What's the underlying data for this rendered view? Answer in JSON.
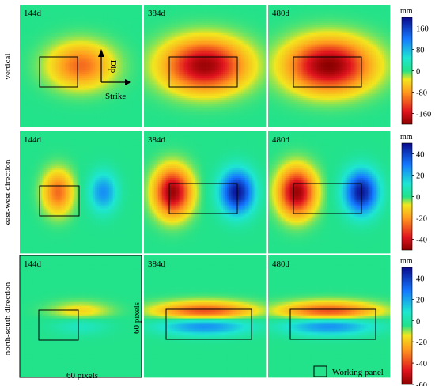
{
  "rows": [
    {
      "label": "vertical",
      "unit": "mm",
      "panels": [
        {
          "time": "144d",
          "pattern": "bowl",
          "amplitude": 0.55
        },
        {
          "time": "384d",
          "pattern": "bowl",
          "amplitude": 1.0
        },
        {
          "time": "480d",
          "pattern": "bowl",
          "amplitude": 1.05
        }
      ],
      "colorbar": {
        "ticks": [
          "160",
          "80",
          "0",
          "-80",
          "-160"
        ],
        "range": [
          -200,
          200
        ]
      }
    },
    {
      "label": "east-west direction",
      "unit": "mm",
      "panels": [
        {
          "time": "144d",
          "pattern": "ew",
          "amplitude": 0.55
        },
        {
          "time": "384d",
          "pattern": "ew",
          "amplitude": 1.0
        },
        {
          "time": "480d",
          "pattern": "ew",
          "amplitude": 1.0
        }
      ],
      "colorbar": {
        "ticks": [
          "40",
          "20",
          "0",
          "-20",
          "-40"
        ],
        "range": [
          -50,
          50
        ]
      }
    },
    {
      "label": "north-south direction",
      "unit": "mm",
      "panels": [
        {
          "time": "144d",
          "pattern": "ns",
          "amplitude": 0.35
        },
        {
          "time": "384d",
          "pattern": "ns",
          "amplitude": 1.0
        },
        {
          "time": "480d",
          "pattern": "ns",
          "amplitude": 1.0
        }
      ],
      "colorbar": {
        "ticks": [
          "40",
          "20",
          "0",
          "-20",
          "-40",
          "-60"
        ],
        "range": [
          -60,
          50
        ]
      }
    }
  ],
  "annotations": {
    "dip": "Dip",
    "strike": "Strike",
    "pixels_horizontal": "60 pixels",
    "pixels_vertical": "60 pixels",
    "legend_label": "Working panel"
  },
  "colors": {
    "background": "#22e28a",
    "panel_outline": "#000000",
    "separator": "#ffffff"
  }
}
